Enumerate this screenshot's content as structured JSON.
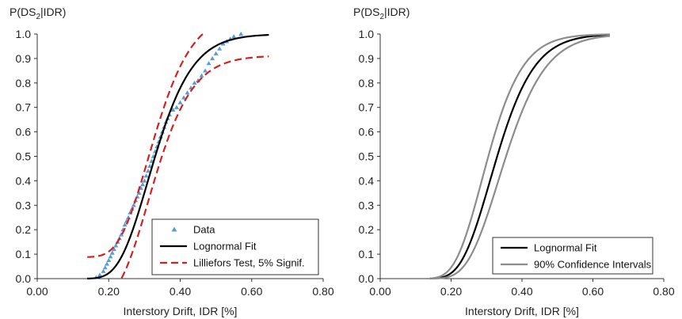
{
  "chart_data": [
    {
      "type": "line",
      "ylabel_parts": {
        "pre": "P(DS",
        "sub": "2",
        "post": "|IDR)"
      },
      "xlabel": "Interstory Drift, IDR [%]",
      "xlim": [
        0.0,
        0.8
      ],
      "ylim": [
        0.0,
        1.0
      ],
      "xticks": [
        "0.00",
        "0.20",
        "0.40",
        "0.60",
        "0.80"
      ],
      "xtick_values": [
        0.0,
        0.2,
        0.4,
        0.6,
        0.8
      ],
      "yticks": [
        "0.0",
        "0.1",
        "0.2",
        "0.3",
        "0.4",
        "0.5",
        "0.6",
        "0.7",
        "0.8",
        "0.9",
        "1.0"
      ],
      "ytick_values": [
        0.0,
        0.1,
        0.2,
        0.3,
        0.4,
        0.5,
        0.6,
        0.7,
        0.8,
        0.9,
        1.0
      ],
      "grid": false,
      "legend_position": "bottom-right",
      "series": [
        {
          "name": "Data",
          "kind": "scatter",
          "color": "#5b9bd5",
          "x": [
            0.165,
            0.175,
            0.185,
            0.19,
            0.195,
            0.2,
            0.205,
            0.21,
            0.215,
            0.22,
            0.225,
            0.23,
            0.235,
            0.24,
            0.245,
            0.25,
            0.255,
            0.26,
            0.265,
            0.27,
            0.275,
            0.28,
            0.285,
            0.29,
            0.295,
            0.3,
            0.305,
            0.31,
            0.315,
            0.32,
            0.325,
            0.33,
            0.335,
            0.34,
            0.345,
            0.35,
            0.355,
            0.36,
            0.365,
            0.37,
            0.38,
            0.39,
            0.4,
            0.41,
            0.42,
            0.43,
            0.44,
            0.45,
            0.46,
            0.47,
            0.48,
            0.49,
            0.5,
            0.51,
            0.52,
            0.53,
            0.54,
            0.55,
            0.57
          ],
          "y": [
            0.005,
            0.015,
            0.03,
            0.045,
            0.06,
            0.075,
            0.09,
            0.105,
            0.12,
            0.135,
            0.15,
            0.165,
            0.18,
            0.2,
            0.22,
            0.235,
            0.25,
            0.27,
            0.285,
            0.3,
            0.32,
            0.335,
            0.35,
            0.37,
            0.385,
            0.4,
            0.42,
            0.44,
            0.46,
            0.48,
            0.5,
            0.52,
            0.54,
            0.56,
            0.58,
            0.6,
            0.62,
            0.64,
            0.655,
            0.67,
            0.69,
            0.7,
            0.72,
            0.74,
            0.76,
            0.78,
            0.8,
            0.81,
            0.83,
            0.85,
            0.88,
            0.9,
            0.92,
            0.94,
            0.96,
            0.97,
            0.98,
            0.99,
            1.0
          ]
        },
        {
          "name": "Lognormal Fit",
          "kind": "line",
          "color": "#000000",
          "median": 0.33,
          "beta": 0.25,
          "x_range": [
            0.14,
            0.65
          ]
        },
        {
          "name": "Lilliefors Test, 5% Signif.",
          "kind": "band",
          "color": "#d62020",
          "dash": true,
          "offset": 0.088,
          "x_range": [
            0.14,
            0.65
          ]
        }
      ]
    },
    {
      "type": "line",
      "ylabel_parts": {
        "pre": "P(DS",
        "sub": "2",
        "post": "|IDR)"
      },
      "xlabel": "Interstory Drift, IDR [%]",
      "xlim": [
        0.0,
        0.8
      ],
      "ylim": [
        0.0,
        1.0
      ],
      "xticks": [
        "0.00",
        "0.20",
        "0.40",
        "0.60",
        "0.80"
      ],
      "xtick_values": [
        0.0,
        0.2,
        0.4,
        0.6,
        0.8
      ],
      "yticks": [
        "0.0",
        "0.1",
        "0.2",
        "0.3",
        "0.4",
        "0.5",
        "0.6",
        "0.7",
        "0.8",
        "0.9",
        "1.0"
      ],
      "ytick_values": [
        0.0,
        0.1,
        0.2,
        0.3,
        0.4,
        0.5,
        0.6,
        0.7,
        0.8,
        0.9,
        1.0
      ],
      "grid": false,
      "legend_position": "bottom-right",
      "series": [
        {
          "name": "Lognormal Fit",
          "kind": "line",
          "color": "#000000",
          "median": 0.33,
          "beta": 0.25,
          "x_range": [
            0.14,
            0.65
          ]
        },
        {
          "name": "90% Confidence Intervals",
          "kind": "ci",
          "color": "#8c8c8c",
          "lower_median": 0.355,
          "upper_median": 0.305,
          "beta": 0.25,
          "x_range": [
            0.14,
            0.65
          ]
        }
      ]
    }
  ]
}
